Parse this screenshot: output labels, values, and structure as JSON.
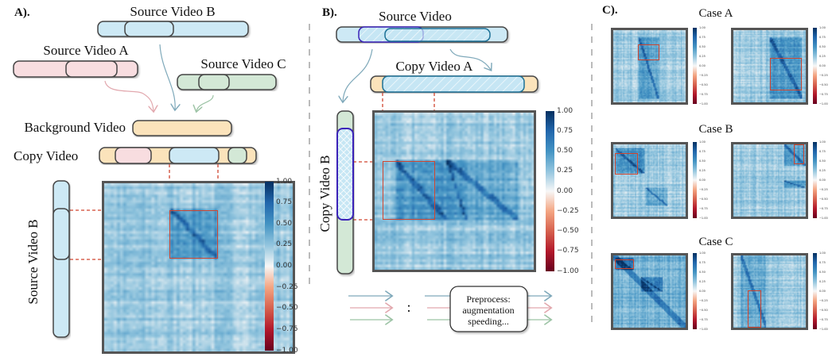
{
  "panel_a": {
    "label": "A).",
    "source_b": "Source Video B",
    "source_a": "Source Video A",
    "source_c": "Source Video C",
    "background": "Background Video",
    "copy": "Copy Video",
    "vertical_label": "Source Video B"
  },
  "panel_b": {
    "label": "B).",
    "source": "Source Video",
    "copy_a": "Copy Video A",
    "copy_b": "Copy Video B",
    "colon": ":",
    "preprocess_lines": [
      "Preprocess:",
      "augmentation",
      "speeding..."
    ]
  },
  "panel_c": {
    "label": "C).",
    "cases": [
      "Case A",
      "Case B",
      "Case C"
    ]
  },
  "colorbar_ticks": [
    "1.00",
    "0.75",
    "0.50",
    "0.25",
    "0.00",
    "−0.25",
    "−0.50",
    "−0.75",
    "−1.00"
  ],
  "colors": {
    "source_b_blue": "#cde9f5",
    "source_a_pink": "#f8dde0",
    "source_c_green": "#d3e8d6",
    "background_orange": "#fbe3bb",
    "highlight_red": "#d0452f",
    "segment_purple": "#3a24b8",
    "segment_teal": "#1f7196"
  }
}
